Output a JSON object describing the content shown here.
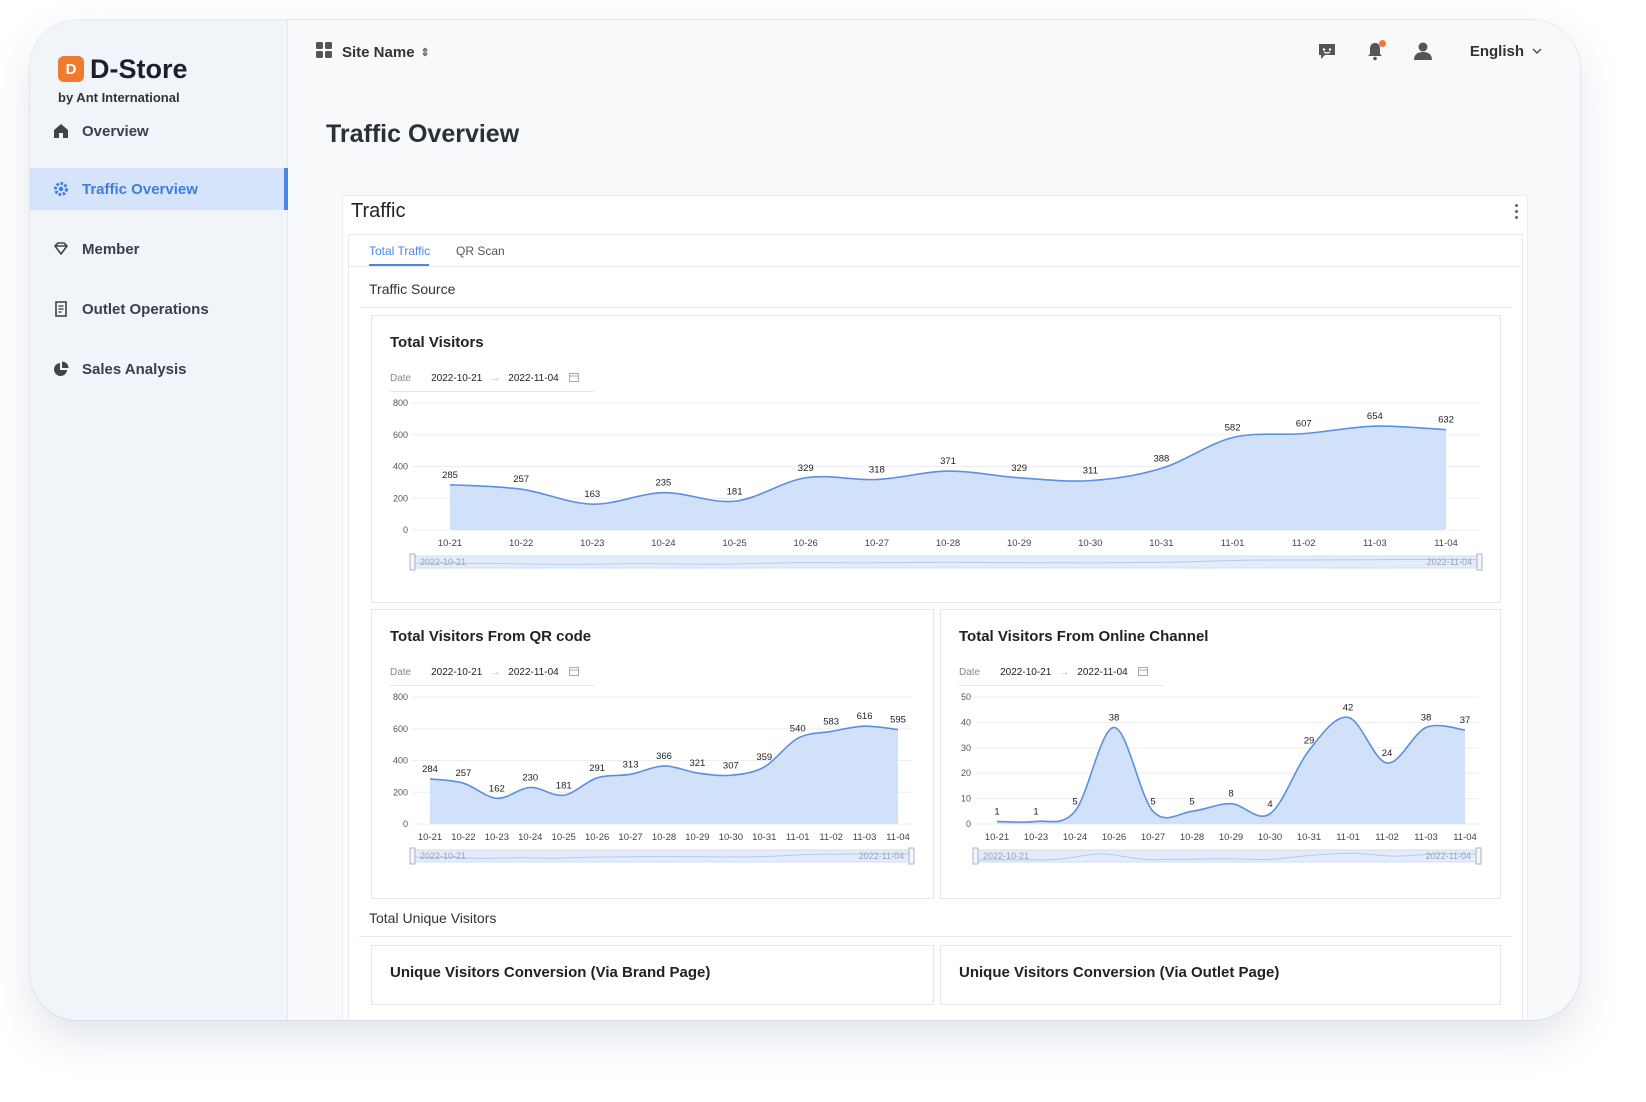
{
  "brand": {
    "logo_letter": "D",
    "name": "D-Store",
    "tagline": "by Ant International"
  },
  "sidebar": {
    "items": [
      {
        "label": "Overview",
        "icon": "home-icon",
        "active": false
      },
      {
        "label": "Traffic Overview",
        "icon": "gear-icon",
        "active": true
      },
      {
        "label": "Member",
        "icon": "diamond-icon",
        "active": false
      },
      {
        "label": "Outlet Operations",
        "icon": "document-icon",
        "active": false
      },
      {
        "label": "Sales Analysis",
        "icon": "pie-chart-icon",
        "active": false
      }
    ]
  },
  "topbar": {
    "site_name": "Site Name",
    "site_icon": "grid-icon",
    "updown_glyph": "⇕",
    "icons": [
      "chat-icon",
      "bell-icon",
      "user-icon"
    ],
    "language": "English"
  },
  "page": {
    "title": "Traffic Overview"
  },
  "panel": {
    "title": "Traffic",
    "tabs": [
      {
        "label": "Total Traffic",
        "active": true
      },
      {
        "label": "QR Scan",
        "active": false
      }
    ],
    "section_traffic_source": "Traffic Source",
    "section_unique": "Total Unique Visitors",
    "unique_card_left": "Unique Visitors Conversion (Via Brand Page)",
    "unique_card_right": "Unique Visitors Conversion (Via Outlet Page)"
  },
  "colors": {
    "accent": "#4a86e8",
    "area_fill": "#d2e1fa",
    "line": "#5b8fe0",
    "orange": "#f07b2d"
  },
  "chart_data": [
    {
      "type": "area",
      "title": "Total Visitors",
      "date_label": "Date",
      "date_start": "2022-10-21",
      "date_end": "2022-11-04",
      "date_sep": "→",
      "categories": [
        "10-21",
        "10-22",
        "10-23",
        "10-24",
        "10-25",
        "10-26",
        "10-27",
        "10-28",
        "10-29",
        "10-30",
        "10-31",
        "11-01",
        "11-02",
        "11-03",
        "11-04"
      ],
      "values": [
        285,
        257,
        163,
        235,
        181,
        329,
        318,
        371,
        329,
        311,
        388,
        582,
        607,
        654,
        632
      ],
      "yticks": [
        0,
        200,
        400,
        600,
        800
      ],
      "ylim": [
        0,
        800
      ],
      "range_start": "2022-10-21",
      "range_end": "2022-11-04",
      "grid": true
    },
    {
      "type": "area",
      "title": "Total Visitors From QR code",
      "date_label": "Date",
      "date_start": "2022-10-21",
      "date_end": "2022-11-04",
      "date_sep": "→",
      "categories": [
        "10-21",
        "10-22",
        "10-23",
        "10-24",
        "10-25",
        "10-26",
        "10-27",
        "10-28",
        "10-29",
        "10-30",
        "10-31",
        "11-01",
        "11-02",
        "11-03",
        "11-04"
      ],
      "values": [
        284,
        257,
        162,
        230,
        181,
        291,
        313,
        366,
        321,
        307,
        359,
        540,
        583,
        616,
        595
      ],
      "yticks": [
        0,
        200,
        400,
        600,
        800
      ],
      "ylim": [
        0,
        800
      ],
      "range_start": "2022-10-21",
      "range_end": "2022-11-04",
      "grid": true
    },
    {
      "type": "area",
      "title": "Total Visitors From Online Channel",
      "date_label": "Date",
      "date_start": "2022-10-21",
      "date_end": "2022-11-04",
      "date_sep": "→",
      "categories": [
        "10-21",
        "10-23",
        "10-24",
        "10-26",
        "10-27",
        "10-28",
        "10-29",
        "10-30",
        "10-31",
        "11-01",
        "11-02",
        "11-03",
        "11-04"
      ],
      "values": [
        1,
        1,
        5,
        38,
        5,
        5,
        8,
        4,
        29,
        42,
        24,
        38,
        37
      ],
      "yticks": [
        0,
        10,
        20,
        30,
        40,
        50
      ],
      "ylim": [
        0,
        50
      ],
      "range_start": "2022-10-21",
      "range_end": "2022-11-04",
      "grid": true
    }
  ]
}
